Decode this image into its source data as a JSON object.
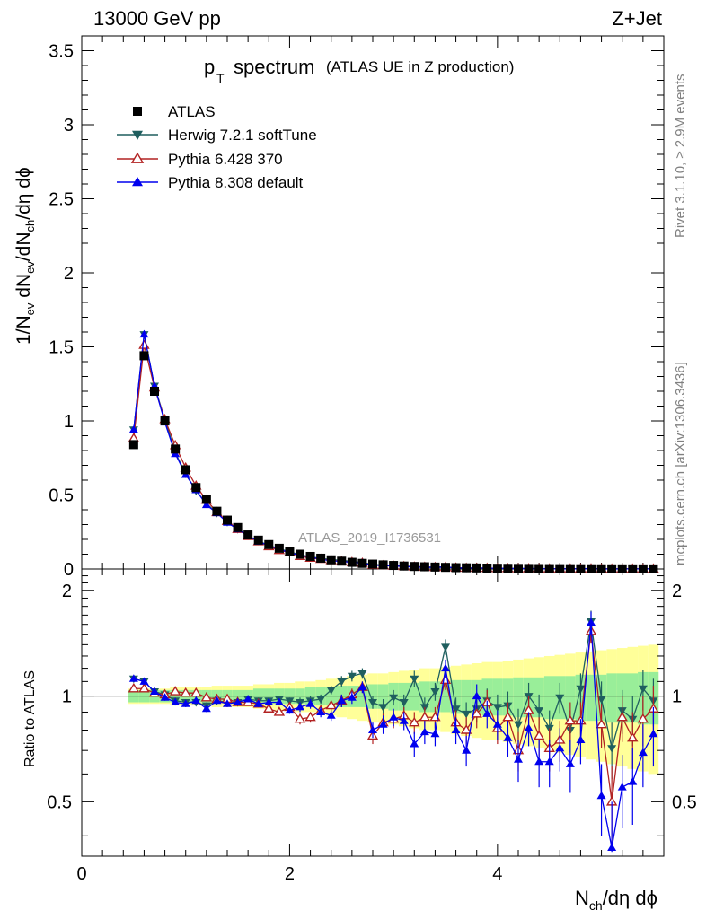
{
  "header": {
    "energy": "13000 GeV pp",
    "process": "Z+Jet"
  },
  "chart_data": {
    "type": "line",
    "title_main": "p",
    "title_sub": "T",
    "title_rest": "spectrum",
    "title_note": "(ATLAS UE in Z production)",
    "xlabel": "N",
    "xlabel_sub": "ch",
    "xlabel_rest": "/dη dϕ",
    "ylabel": "1/N",
    "ylabel_sub1": "ev",
    "ylabel_mid": " dN",
    "ylabel_sub2": "ev",
    "ylabel_mid2": "/dN",
    "ylabel_sub3": "ch",
    "ylabel_rest": "/dη dϕ",
    "ratio_ylabel": "Ratio to ATLAS",
    "watermark": "ATLAS_2019_I1736531",
    "side_top": "Rivet 3.1.10, ≥ 2.9M events",
    "side_bottom": "mcplots.cern.ch [arXiv:1306.3436]",
    "xlim": [
      0,
      5.6
    ],
    "ylim": [
      0,
      3.6
    ],
    "ratio_ylim": [
      0.35,
      2.3
    ],
    "x_ticks": [
      "0",
      "2",
      "4"
    ],
    "y_ticks": [
      "0",
      "0.5",
      "1",
      "1.5",
      "2",
      "2.5",
      "3",
      "3.5"
    ],
    "ratio_ticks": [
      "0.5",
      "1",
      "2"
    ],
    "x": [
      0.5,
      0.6,
      0.7,
      0.8,
      0.9,
      1.0,
      1.1,
      1.2,
      1.3,
      1.4,
      1.5,
      1.6,
      1.7,
      1.8,
      1.9,
      2.0,
      2.1,
      2.2,
      2.3,
      2.4,
      2.5,
      2.6,
      2.7,
      2.8,
      2.9,
      3.0,
      3.1,
      3.2,
      3.3,
      3.4,
      3.5,
      3.6,
      3.7,
      3.8,
      3.9,
      4.0,
      4.1,
      4.2,
      4.3,
      4.4,
      4.5,
      4.6,
      4.7,
      4.8,
      4.9,
      5.0,
      5.1,
      5.2,
      5.3,
      5.4,
      5.5
    ],
    "data_values": [
      0.84,
      1.44,
      1.2,
      1.0,
      0.81,
      0.67,
      0.55,
      0.47,
      0.39,
      0.33,
      0.28,
      0.23,
      0.195,
      0.165,
      0.14,
      0.12,
      0.1,
      0.085,
      0.073,
      0.062,
      0.053,
      0.045,
      0.038,
      0.033,
      0.028,
      0.024,
      0.02,
      0.017,
      0.015,
      0.013,
      0.011,
      0.009,
      0.008,
      0.007,
      0.006,
      0.005,
      0.0045,
      0.004,
      0.0035,
      0.003,
      0.0026,
      0.0023,
      0.002,
      0.0018,
      0.0016,
      0.0014,
      0.0012,
      0.0011,
      0.001,
      0.0009,
      0.0008
    ],
    "band_inner": [
      0.04,
      0.04,
      0.04,
      0.04,
      0.04,
      0.04,
      0.04,
      0.04,
      0.04,
      0.04,
      0.04,
      0.04,
      0.05,
      0.05,
      0.05,
      0.05,
      0.05,
      0.06,
      0.06,
      0.06,
      0.07,
      0.07,
      0.07,
      0.08,
      0.08,
      0.09,
      0.09,
      0.09,
      0.1,
      0.1,
      0.1,
      0.11,
      0.11,
      0.11,
      0.12,
      0.12,
      0.12,
      0.13,
      0.13,
      0.13,
      0.14,
      0.14,
      0.14,
      0.15,
      0.15,
      0.15,
      0.16,
      0.16,
      0.16,
      0.17,
      0.17
    ],
    "band_outer": [
      0.05,
      0.05,
      0.05,
      0.05,
      0.06,
      0.06,
      0.06,
      0.06,
      0.07,
      0.07,
      0.07,
      0.07,
      0.08,
      0.08,
      0.09,
      0.09,
      0.1,
      0.1,
      0.11,
      0.12,
      0.13,
      0.14,
      0.15,
      0.16,
      0.16,
      0.17,
      0.18,
      0.19,
      0.2,
      0.2,
      0.21,
      0.22,
      0.23,
      0.24,
      0.25,
      0.25,
      0.26,
      0.27,
      0.28,
      0.29,
      0.3,
      0.31,
      0.32,
      0.33,
      0.34,
      0.35,
      0.36,
      0.37,
      0.38,
      0.39,
      0.4
    ],
    "series": [
      {
        "name": "ATLAS",
        "color": "#000000",
        "marker": "square"
      },
      {
        "name": "Herwig 7.2.1 softTune",
        "color": "#1f5f5f",
        "marker": "triangle-down",
        "ratio": [
          1.12,
          1.1,
          1.03,
          1.01,
          0.97,
          0.96,
          0.96,
          0.94,
          0.97,
          0.96,
          0.96,
          0.98,
          0.97,
          0.97,
          0.98,
          0.97,
          0.96,
          0.97,
          0.98,
          1.04,
          1.1,
          1.14,
          1.16,
          0.96,
          0.93,
          0.99,
          0.96,
          1.12,
          0.93,
          1.03,
          1.38,
          0.92,
          0.89,
          0.92,
          0.97,
          0.93,
          0.94,
          0.83,
          1.0,
          0.91,
          0.81,
          0.99,
          0.8,
          1.05,
          1.63,
          0.98,
          0.71,
          0.91,
          0.86,
          1.05,
          0.97
        ],
        "ratio_err": [
          0.02,
          0.02,
          0.02,
          0.02,
          0.02,
          0.02,
          0.02,
          0.02,
          0.02,
          0.02,
          0.02,
          0.02,
          0.02,
          0.02,
          0.02,
          0.02,
          0.03,
          0.03,
          0.03,
          0.03,
          0.04,
          0.04,
          0.04,
          0.04,
          0.05,
          0.05,
          0.05,
          0.06,
          0.06,
          0.06,
          0.07,
          0.07,
          0.07,
          0.08,
          0.08,
          0.08,
          0.09,
          0.09,
          0.09,
          0.1,
          0.1,
          0.1,
          0.11,
          0.11,
          0.12,
          0.12,
          0.13,
          0.13,
          0.14,
          0.14,
          0.15
        ]
      },
      {
        "name": "Pythia 6.428 370",
        "color": "#b22222",
        "marker": "triangle-up-open",
        "ratio": [
          1.05,
          1.05,
          1.02,
          1.01,
          1.03,
          1.02,
          1.02,
          0.99,
          0.98,
          0.98,
          0.96,
          0.96,
          0.95,
          0.92,
          0.9,
          0.93,
          0.86,
          0.87,
          0.91,
          0.94,
          0.97,
          1.01,
          1.06,
          0.77,
          0.84,
          0.86,
          0.88,
          0.84,
          0.87,
          0.87,
          1.11,
          0.84,
          0.8,
          0.89,
          0.96,
          0.81,
          0.87,
          0.7,
          0.91,
          0.77,
          0.71,
          0.75,
          0.85,
          0.85,
          1.53,
          0.83,
          0.5,
          0.87,
          0.76,
          0.86,
          0.92
        ],
        "ratio_err": [
          0.02,
          0.02,
          0.02,
          0.02,
          0.02,
          0.02,
          0.02,
          0.02,
          0.02,
          0.02,
          0.02,
          0.02,
          0.02,
          0.02,
          0.02,
          0.02,
          0.03,
          0.03,
          0.03,
          0.03,
          0.04,
          0.04,
          0.04,
          0.04,
          0.05,
          0.05,
          0.05,
          0.06,
          0.06,
          0.06,
          0.07,
          0.07,
          0.07,
          0.08,
          0.08,
          0.08,
          0.09,
          0.09,
          0.09,
          0.1,
          0.1,
          0.1,
          0.11,
          0.11,
          0.12,
          0.12,
          0.13,
          0.13,
          0.14,
          0.14,
          0.15
        ]
      },
      {
        "name": "Pythia 8.308 default",
        "color": "#0000ee",
        "marker": "triangle-up",
        "ratio": [
          1.12,
          1.1,
          1.03,
          0.99,
          0.96,
          0.95,
          0.97,
          0.92,
          0.97,
          0.95,
          0.96,
          0.98,
          0.95,
          0.96,
          0.96,
          0.91,
          0.93,
          0.95,
          0.9,
          0.88,
          0.97,
          0.99,
          1.06,
          0.8,
          0.83,
          0.87,
          0.85,
          0.73,
          0.79,
          0.78,
          1.2,
          0.8,
          0.7,
          1.0,
          0.89,
          0.83,
          0.76,
          0.66,
          0.81,
          0.65,
          0.65,
          0.71,
          0.64,
          0.75,
          1.62,
          0.52,
          0.37,
          0.55,
          0.57,
          0.69,
          0.78
        ],
        "ratio_err": [
          0.02,
          0.02,
          0.02,
          0.02,
          0.02,
          0.02,
          0.02,
          0.02,
          0.02,
          0.02,
          0.02,
          0.02,
          0.02,
          0.02,
          0.02,
          0.02,
          0.03,
          0.03,
          0.03,
          0.03,
          0.04,
          0.04,
          0.04,
          0.04,
          0.05,
          0.05,
          0.05,
          0.06,
          0.06,
          0.06,
          0.07,
          0.07,
          0.07,
          0.08,
          0.08,
          0.08,
          0.09,
          0.09,
          0.09,
          0.1,
          0.1,
          0.1,
          0.11,
          0.11,
          0.12,
          0.12,
          0.13,
          0.13,
          0.14,
          0.14,
          0.15
        ]
      }
    ]
  }
}
